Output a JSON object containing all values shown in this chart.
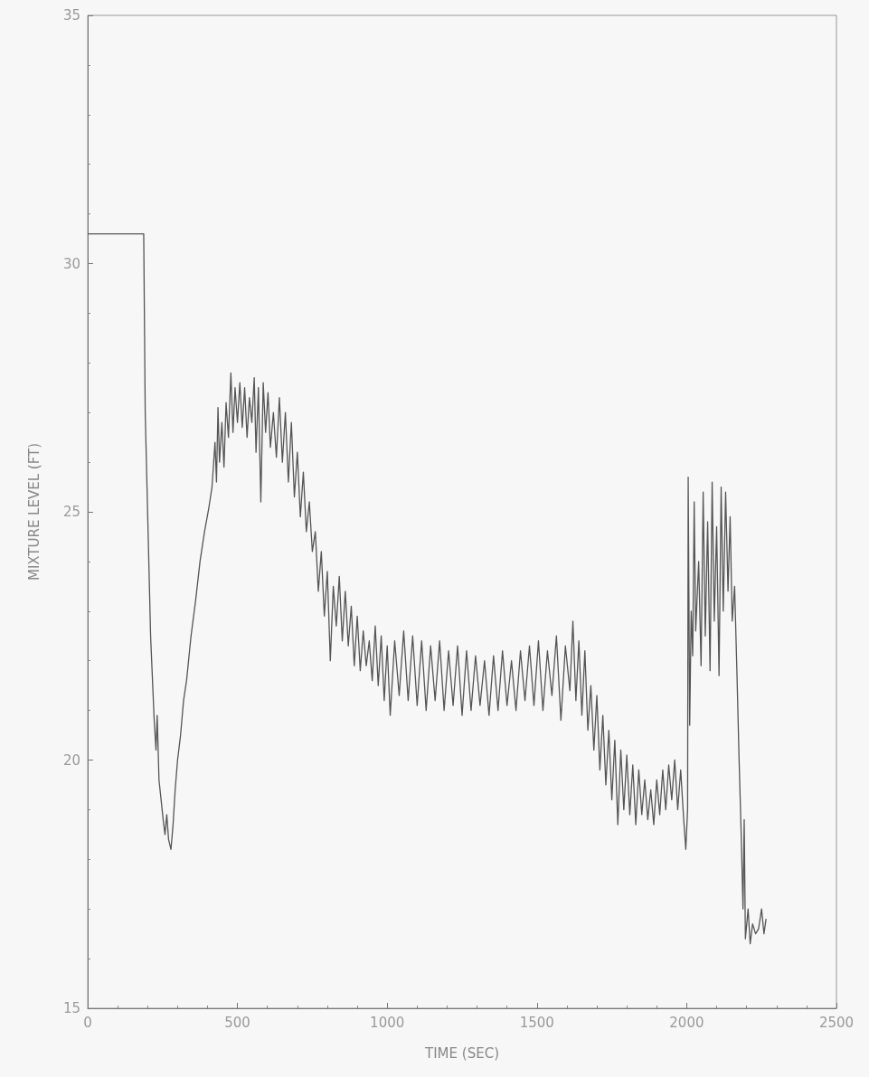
{
  "chart_data": {
    "type": "line",
    "xlabel": "TIME (SEC)",
    "ylabel": "MIXTURE LEVEL (FT)",
    "xlim": [
      0,
      2500
    ],
    "xticks": [
      0,
      500,
      1000,
      1500,
      2000,
      2500
    ],
    "ylim": [
      15,
      35
    ],
    "yticks": [
      15,
      20,
      25,
      30,
      35
    ],
    "color": "#555555",
    "x": [
      0,
      187,
      192,
      200,
      210,
      222,
      228,
      232,
      238,
      245,
      252,
      258,
      264,
      270,
      278,
      285,
      292,
      300,
      310,
      320,
      330,
      345,
      360,
      375,
      390,
      405,
      415,
      425,
      430,
      435,
      440,
      448,
      455,
      462,
      470,
      478,
      485,
      492,
      500,
      508,
      516,
      524,
      532,
      540,
      548,
      556,
      562,
      570,
      578,
      586,
      594,
      602,
      610,
      620,
      630,
      640,
      650,
      660,
      670,
      680,
      690,
      700,
      710,
      720,
      730,
      740,
      750,
      760,
      770,
      780,
      790,
      800,
      810,
      820,
      830,
      840,
      850,
      860,
      870,
      880,
      890,
      900,
      910,
      920,
      930,
      940,
      950,
      960,
      970,
      980,
      990,
      1000,
      1010,
      1025,
      1040,
      1055,
      1070,
      1085,
      1100,
      1115,
      1130,
      1145,
      1160,
      1175,
      1190,
      1205,
      1220,
      1235,
      1250,
      1265,
      1280,
      1295,
      1310,
      1325,
      1340,
      1355,
      1370,
      1385,
      1400,
      1415,
      1430,
      1445,
      1460,
      1475,
      1490,
      1505,
      1520,
      1535,
      1550,
      1565,
      1580,
      1595,
      1610,
      1620,
      1630,
      1640,
      1650,
      1660,
      1670,
      1680,
      1690,
      1700,
      1710,
      1720,
      1730,
      1740,
      1750,
      1760,
      1770,
      1780,
      1790,
      1800,
      1810,
      1820,
      1830,
      1840,
      1850,
      1860,
      1870,
      1880,
      1890,
      1900,
      1910,
      1920,
      1930,
      1940,
      1950,
      1960,
      1970,
      1980,
      1990,
      1997,
      2003,
      2005,
      2010,
      2015,
      2020,
      2025,
      2030,
      2040,
      2048,
      2055,
      2062,
      2070,
      2078,
      2085,
      2092,
      2100,
      2108,
      2115,
      2122,
      2130,
      2138,
      2145,
      2152,
      2160,
      2168,
      2175,
      2182,
      2188,
      2192,
      2196,
      2205,
      2212,
      2220,
      2230,
      2240,
      2250,
      2258,
      2265
    ],
    "values": [
      30.6,
      30.6,
      27,
      25,
      22.5,
      20.8,
      20.2,
      20.9,
      19.6,
      19.2,
      18.8,
      18.5,
      18.9,
      18.4,
      18.2,
      18.7,
      19.4,
      20.0,
      20.5,
      21.2,
      21.6,
      22.5,
      23.2,
      24.0,
      24.6,
      25.1,
      25.5,
      26.4,
      25.6,
      27.1,
      26.0,
      26.8,
      25.9,
      27.2,
      26.5,
      27.8,
      26.6,
      27.5,
      26.8,
      27.6,
      26.7,
      27.5,
      26.5,
      27.3,
      26.8,
      27.7,
      26.2,
      27.5,
      25.2,
      27.6,
      26.6,
      27.4,
      26.3,
      27.0,
      26.1,
      27.3,
      26.0,
      27.0,
      25.6,
      26.8,
      25.3,
      26.2,
      24.9,
      25.8,
      24.6,
      25.2,
      24.2,
      24.6,
      23.4,
      24.2,
      22.9,
      23.8,
      22.0,
      23.5,
      22.7,
      23.7,
      22.4,
      23.4,
      22.3,
      23.1,
      21.9,
      22.9,
      21.8,
      22.6,
      21.9,
      22.4,
      21.6,
      22.7,
      21.5,
      22.5,
      21.2,
      22.3,
      20.9,
      22.4,
      21.3,
      22.6,
      21.2,
      22.5,
      21.1,
      22.4,
      21.0,
      22.3,
      21.2,
      22.4,
      21.0,
      22.2,
      21.1,
      22.3,
      20.9,
      22.2,
      21.0,
      22.1,
      21.1,
      22.0,
      20.9,
      22.1,
      21.0,
      22.2,
      21.1,
      22.0,
      21.0,
      22.2,
      21.2,
      22.3,
      21.1,
      22.4,
      21.0,
      22.2,
      21.3,
      22.5,
      20.8,
      22.3,
      21.4,
      22.8,
      21.2,
      22.4,
      20.9,
      22.2,
      20.6,
      21.5,
      20.2,
      21.3,
      19.8,
      20.9,
      19.5,
      20.6,
      19.2,
      20.4,
      18.7,
      20.2,
      19.0,
      20.1,
      18.9,
      19.9,
      18.7,
      19.8,
      18.9,
      19.6,
      18.8,
      19.4,
      18.7,
      19.6,
      18.9,
      19.8,
      19.0,
      19.9,
      19.2,
      20.0,
      19.0,
      19.8,
      18.8,
      18.2,
      19.0,
      25.7,
      20.7,
      23.0,
      22.1,
      25.2,
      22.6,
      24.0,
      21.9,
      25.4,
      22.5,
      24.8,
      21.8,
      25.6,
      22.8,
      24.7,
      21.7,
      25.5,
      23.0,
      25.4,
      23.4,
      24.9,
      22.8,
      23.5,
      21.7,
      20.0,
      18.5,
      17.0,
      18.8,
      16.4,
      17.0,
      16.3,
      16.7,
      16.5,
      16.6,
      17.0,
      16.5,
      16.8
    ]
  }
}
